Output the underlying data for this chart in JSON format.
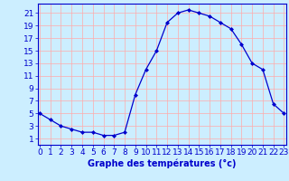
{
  "x_values": [
    0,
    1,
    2,
    3,
    4,
    5,
    6,
    7,
    8,
    9,
    10,
    11,
    12,
    13,
    14,
    15,
    16,
    17,
    18,
    19,
    20,
    21,
    22,
    23
  ],
  "y_values": [
    5,
    4,
    3,
    2.5,
    2,
    2,
    1.5,
    1.5,
    2,
    8,
    12,
    15,
    19.5,
    21,
    21.5,
    21,
    20.5,
    19.5,
    18.5,
    16,
    13,
    12,
    6.5,
    5
  ],
  "xlabel": "Graphe des températures (°c)",
  "yticks": [
    1,
    3,
    5,
    7,
    9,
    11,
    13,
    15,
    17,
    19,
    21
  ],
  "xticks": [
    0,
    1,
    2,
    3,
    4,
    5,
    6,
    7,
    8,
    9,
    10,
    11,
    12,
    13,
    14,
    15,
    16,
    17,
    18,
    19,
    20,
    21,
    22,
    23
  ],
  "xlim": [
    -0.2,
    23.2
  ],
  "ylim": [
    0,
    22.5
  ],
  "line_color": "#0000cc",
  "marker": "D",
  "marker_size": 2.0,
  "bg_color": "#cceeff",
  "grid_color": "#ffaaaa",
  "axes_color": "#0000cc",
  "tick_label_color": "#0000cc",
  "xlabel_color": "#0000cc",
  "xlabel_fontsize": 7,
  "tick_fontsize": 6.5
}
